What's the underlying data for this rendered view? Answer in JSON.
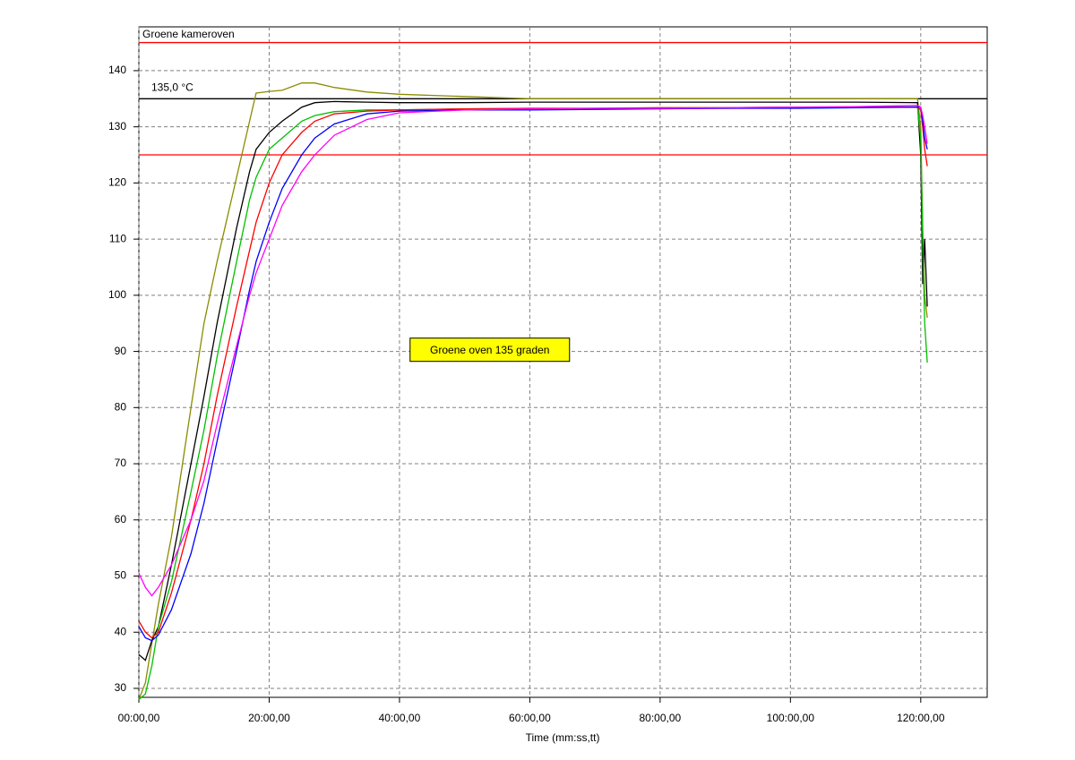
{
  "chart_data": {
    "type": "line",
    "title": "Groene kameroven",
    "x_label": "Time (mm:ss,tt)",
    "annotation": "Groene oven 135 graden",
    "x": [
      0,
      1,
      2,
      3,
      5,
      8,
      10,
      12,
      15,
      17,
      18,
      20,
      22,
      25,
      27,
      30,
      35,
      40,
      50,
      60,
      70,
      80,
      90,
      100,
      110,
      119.5,
      120,
      120.3,
      120.6,
      121
    ],
    "series": [
      {
        "color": "#8b8b00",
        "values": [
          28,
          31,
          38,
          45,
          57,
          80,
          95,
          106,
          121,
          131,
          136,
          136.3,
          136.5,
          137.8,
          137.8,
          137,
          136.2,
          135.8,
          135.4,
          135,
          135,
          135,
          135,
          135,
          135,
          135,
          130,
          112,
          100,
          96
        ]
      },
      {
        "color": "#000000",
        "values": [
          36,
          35,
          38.5,
          41,
          52,
          70,
          82,
          95,
          112,
          122,
          126,
          129,
          131,
          133.5,
          134.3,
          134.5,
          134.4,
          134.3,
          134.3,
          134.4,
          134.4,
          134.4,
          134.4,
          134.4,
          134.4,
          134.3,
          125,
          102,
          110,
          98
        ]
      },
      {
        "color": "#00c000",
        "values": [
          28,
          29,
          34,
          41,
          49,
          65,
          76,
          89,
          106,
          117,
          121,
          126,
          128,
          131,
          132,
          132.7,
          133,
          133,
          133.2,
          133.3,
          133.3,
          133.3,
          133.3,
          133.4,
          133.5,
          133.5,
          128,
          110,
          95,
          88
        ]
      },
      {
        "color": "#ff0000",
        "values": [
          42,
          40,
          39,
          40,
          47,
          60,
          70,
          82,
          98,
          108,
          113,
          120,
          125,
          129,
          131,
          132.3,
          132.8,
          133,
          133.2,
          133.3,
          133.3,
          133.4,
          133.4,
          133.5,
          133.5,
          133.5,
          133,
          130,
          126,
          123
        ]
      },
      {
        "color": "#0000ff",
        "values": [
          41,
          39,
          38.5,
          39.5,
          44,
          54,
          63,
          74,
          90,
          101,
          106,
          113,
          119,
          125,
          128,
          130.5,
          132.3,
          132.8,
          133,
          133,
          133.1,
          133.2,
          133.3,
          133.3,
          133.4,
          133.5,
          133.5,
          131,
          128,
          126
        ]
      },
      {
        "color": "#ff00ff",
        "values": [
          50.5,
          48,
          46.5,
          48,
          52,
          60,
          67,
          77,
          91,
          100,
          104,
          110,
          116,
          122,
          125,
          128.5,
          131.3,
          132.5,
          133,
          133.2,
          133.3,
          133.3,
          133.4,
          133.5,
          133.6,
          133.8,
          133.5,
          132,
          130,
          127
        ]
      }
    ],
    "hlines": [
      {
        "value": 145,
        "color": "#ff0000"
      },
      {
        "value": 135,
        "color": "#000000",
        "label": "135,0 °C"
      },
      {
        "value": 125,
        "color": "#ff0000"
      }
    ],
    "xlim": [
      0,
      130.2
    ],
    "ylim": [
      28.4,
      147.8
    ],
    "xticks": [
      {
        "value": 0,
        "label": "00:00,00"
      },
      {
        "value": 20,
        "label": "20:00,00"
      },
      {
        "value": 40,
        "label": "40:00,00"
      },
      {
        "value": 60,
        "label": "60:00,00"
      },
      {
        "value": 80,
        "label": "80:00,00"
      },
      {
        "value": 100,
        "label": "100:00,00"
      },
      {
        "value": 120,
        "label": "120:00,00"
      }
    ],
    "yticks": [
      30,
      40,
      50,
      60,
      70,
      80,
      90,
      100,
      110,
      120,
      130,
      140
    ],
    "grid": true
  }
}
